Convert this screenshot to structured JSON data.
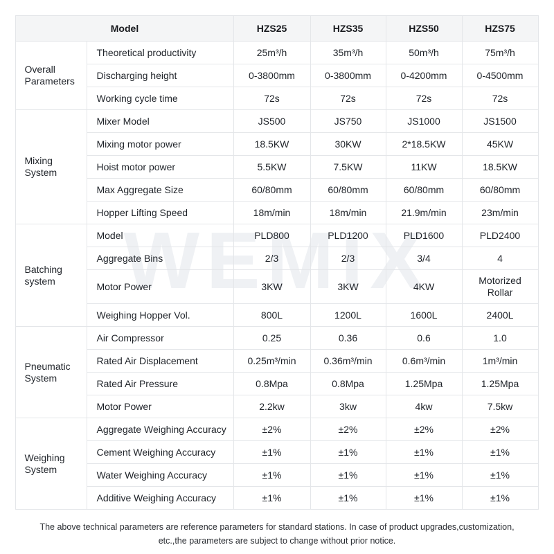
{
  "watermark": "WEMIX",
  "table": {
    "header": {
      "model_label": "Model",
      "columns": [
        "HZS25",
        "HZS35",
        "HZS50",
        "HZS75"
      ]
    },
    "groups": [
      {
        "label": "Overall Parameters",
        "rows": [
          {
            "param": "Theoretical productivity",
            "values": [
              "25m³/h",
              "35m³/h",
              "50m³/h",
              "75m³/h"
            ]
          },
          {
            "param": "Discharging height",
            "values": [
              "0-3800mm",
              "0-3800mm",
              "0-4200mm",
              "0-4500mm"
            ]
          },
          {
            "param": "Working cycle time",
            "values": [
              "72s",
              "72s",
              "72s",
              "72s"
            ]
          }
        ]
      },
      {
        "label": "Mixing System",
        "rows": [
          {
            "param": "Mixer Model",
            "values": [
              "JS500",
              "JS750",
              "JS1000",
              "JS1500"
            ]
          },
          {
            "param": "Mixing motor power",
            "values": [
              "18.5KW",
              "30KW",
              "2*18.5KW",
              "45KW"
            ]
          },
          {
            "param": "Hoist motor power",
            "values": [
              "5.5KW",
              "7.5KW",
              "11KW",
              "18.5KW"
            ]
          },
          {
            "param": "Max Aggregate Size",
            "values": [
              "60/80mm",
              "60/80mm",
              "60/80mm",
              "60/80mm"
            ]
          },
          {
            "param": "Hopper Lifting Speed",
            "values": [
              "18m/min",
              "18m/min",
              "21.9m/min",
              "23m/min"
            ]
          }
        ]
      },
      {
        "label": "Batching system",
        "rows": [
          {
            "param": "Model",
            "values": [
              "PLD800",
              "PLD1200",
              "PLD1600",
              "PLD2400"
            ]
          },
          {
            "param": "Aggregate Bins",
            "values": [
              "2/3",
              "2/3",
              "3/4",
              "4"
            ]
          },
          {
            "param": "Motor Power",
            "values": [
              "3KW",
              "3KW",
              "4KW",
              "Motorized Rollar"
            ]
          },
          {
            "param": "Weighing Hopper Vol.",
            "values": [
              "800L",
              "1200L",
              "1600L",
              "2400L"
            ]
          }
        ]
      },
      {
        "label": "Pneumatic System",
        "rows": [
          {
            "param": "Air Compressor",
            "values": [
              "0.25",
              "0.36",
              "0.6",
              "1.0"
            ]
          },
          {
            "param": "Rated Air Displacement",
            "values": [
              "0.25m³/min",
              "0.36m³/min",
              "0.6m³/min",
              "1m³/min"
            ]
          },
          {
            "param": "Rated Air Pressure",
            "values": [
              "0.8Mpa",
              "0.8Mpa",
              "1.25Mpa",
              "1.25Mpa"
            ]
          },
          {
            "param": "Motor Power",
            "values": [
              "2.2kw",
              "3kw",
              "4kw",
              "7.5kw"
            ]
          }
        ]
      },
      {
        "label": "Weighing System",
        "rows": [
          {
            "param": "Aggregate Weighing Accuracy",
            "values": [
              "±2%",
              "±2%",
              "±2%",
              "±2%"
            ]
          },
          {
            "param": "Cement Weighing Accuracy",
            "values": [
              "±1%",
              "±1%",
              "±1%",
              "±1%"
            ]
          },
          {
            "param": "Water Weighing Accuracy",
            "values": [
              "±1%",
              "±1%",
              "±1%",
              "±1%"
            ]
          },
          {
            "param": "Additive Weighing Accuracy",
            "values": [
              "±1%",
              "±1%",
              "±1%",
              "±1%"
            ]
          }
        ]
      }
    ]
  },
  "footer": {
    "line1": "The above technical parameters are reference parameters for standard stations. In case of product upgrades,customization,",
    "line2": "etc.,the parameters are subject to change without prior notice."
  }
}
